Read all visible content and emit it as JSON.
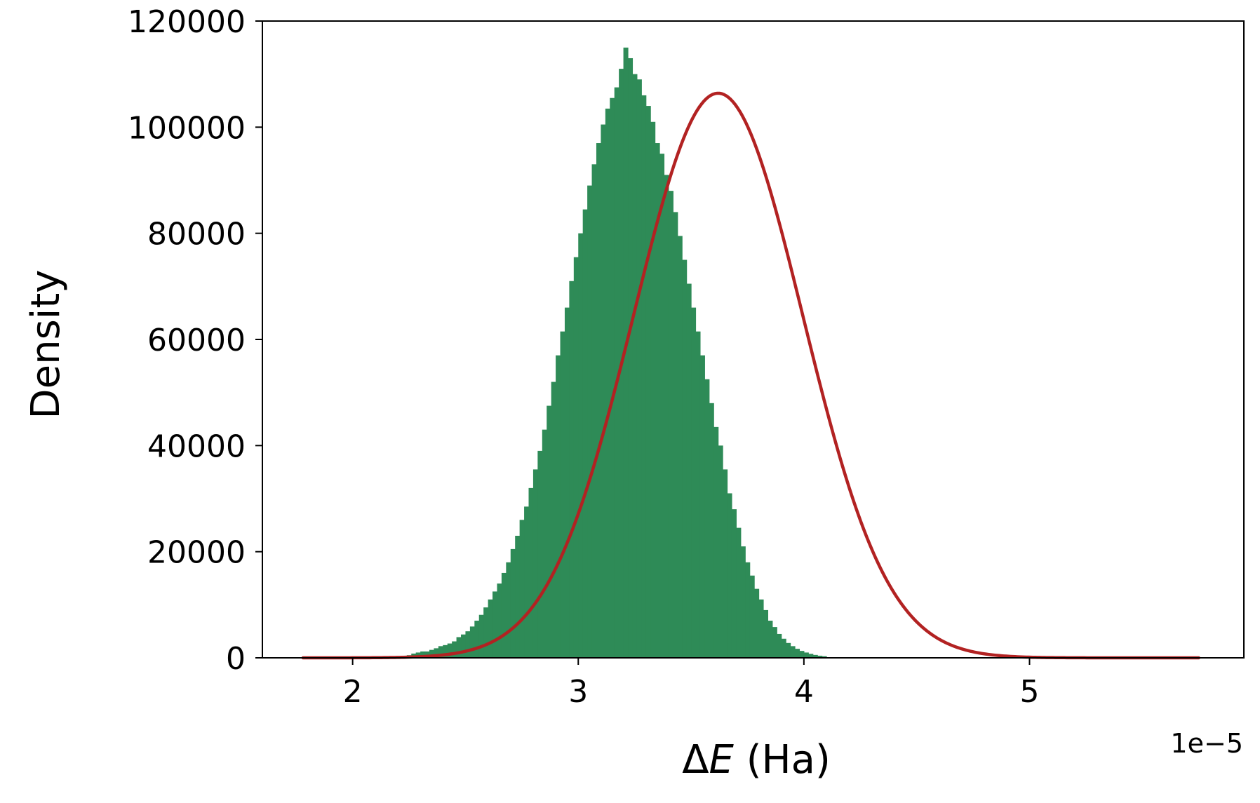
{
  "chart_data": {
    "type": "histogram",
    "title": "",
    "xlabel_prefix": "Δ",
    "xlabel_var": "E",
    "xlabel_suffix": " (Ha)",
    "ylabel": "Density",
    "x_offset_text": "1e−5",
    "x_scale": 1e-05,
    "xlim": [
      1.6,
      5.95
    ],
    "ylim": [
      0,
      120000
    ],
    "xticks": [
      {
        "value": 2,
        "label": "2"
      },
      {
        "value": 3,
        "label": "3"
      },
      {
        "value": 4,
        "label": "4"
      },
      {
        "value": 5,
        "label": "5"
      }
    ],
    "yticks": [
      {
        "value": 0,
        "label": "0"
      },
      {
        "value": 20000,
        "label": "20000"
      },
      {
        "value": 40000,
        "label": "40000"
      },
      {
        "value": 60000,
        "label": "60000"
      },
      {
        "value": 80000,
        "label": "80000"
      },
      {
        "value": 100000,
        "label": "100000"
      },
      {
        "value": 120000,
        "label": "120000"
      }
    ],
    "grid": false,
    "series": [
      {
        "kind": "histogram",
        "bin_start": 2.2,
        "bin_width": 0.02,
        "color": "#2e8b57",
        "values": [
          200,
          400,
          500,
          800,
          1000,
          1200,
          1200,
          1500,
          1800,
          2200,
          2400,
          2700,
          3100,
          3900,
          4400,
          5000,
          5900,
          7000,
          8100,
          9500,
          11000,
          12500,
          14000,
          16000,
          18000,
          20500,
          23000,
          26000,
          28500,
          32000,
          35500,
          39000,
          43000,
          47500,
          52000,
          57000,
          61500,
          66000,
          71000,
          75500,
          80000,
          84500,
          89000,
          93000,
          97000,
          100500,
          103500,
          105500,
          107500,
          111000,
          115000,
          113000,
          110000,
          109000,
          106000,
          104000,
          101000,
          97000,
          95000,
          91000,
          88000,
          84000,
          79500,
          75000,
          70500,
          66000,
          61500,
          57000,
          52500,
          48000,
          43500,
          40000,
          35500,
          31000,
          28000,
          24500,
          21000,
          18000,
          15500,
          13000,
          11000,
          9000,
          7000,
          5800,
          4500,
          3600,
          2800,
          2200,
          1700,
          1300,
          1000,
          750,
          550,
          400,
          300
        ]
      },
      {
        "kind": "gaussian-fit",
        "color": "#b22222",
        "mean": 3.62,
        "sigma": 0.375,
        "peak": 106400,
        "x_range": [
          1.78,
          5.75
        ]
      }
    ]
  }
}
